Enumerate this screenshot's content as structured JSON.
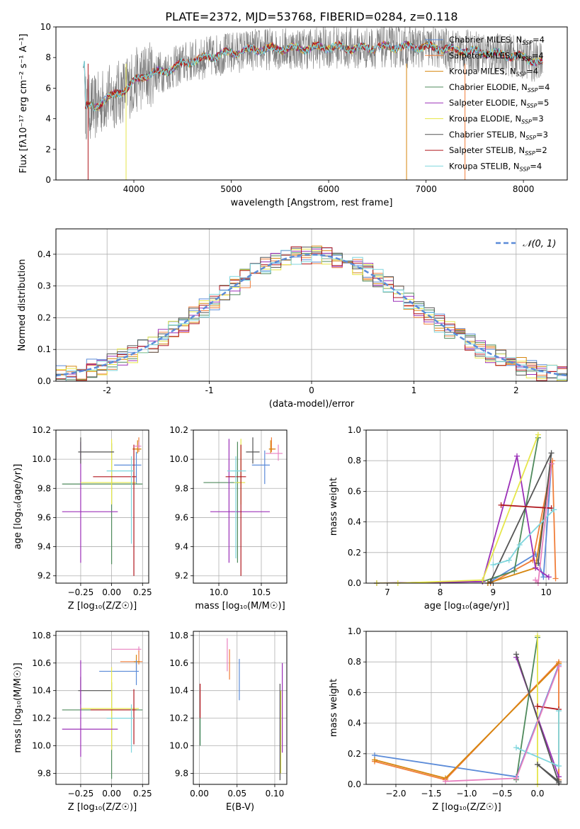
{
  "figure_title": "PLATE=2372, MJD=53768, FIBERID=0284, z=0.118",
  "colors": {
    "chabrier_miles": "#5b8bd8",
    "salpeter_miles": "#f07e3a",
    "kroupa_miles": "#d6860f",
    "chabrier_elodie": "#4f8a5c",
    "salpeter_elodie": "#9b30b8",
    "kroupa_elodie": "#e6e64a",
    "chabrier_stelib": "#555555",
    "salpeter_stelib": "#b0171e",
    "kroupa_stelib": "#7fd6dd",
    "pink": "#e882c0",
    "green": "#8fc43a",
    "gaussian": "#5b8bd8"
  },
  "chart_data": [
    {
      "id": "spectrum",
      "type": "line",
      "title": "PLATE=2372, MJD=53768, FIBERID=0284, z=0.118",
      "xlabel": "wavelength [Angstrom, rest frame]",
      "ylabel": "Flux [fλ10⁻¹⁷ erg cm⁻² s⁻¹ A⁻¹]",
      "xlim": [
        3200,
        8450
      ],
      "ylim": [
        0,
        10
      ],
      "xticks": [
        4000,
        5000,
        6000,
        7000,
        8000
      ],
      "yticks": [
        0,
        2,
        4,
        6,
        8,
        10
      ],
      "grid": false,
      "legend_position": "top-right",
      "series": [
        {
          "name": "Chabrier MILES, N_SSP=4"
        },
        {
          "name": "Salpeter MILES, N_SSP=4"
        },
        {
          "name": "Kroupa MILES, N_SSP=4"
        },
        {
          "name": "Chabrier ELODIE, N_SSP=4"
        },
        {
          "name": "Salpeter ELODIE, N_SSP=5"
        },
        {
          "name": "Kroupa ELODIE, N_SSP=3"
        },
        {
          "name": "Chabrier STELIB, N_SSP=3"
        },
        {
          "name": "Salpeter STELIB, N_SSP=2"
        },
        {
          "name": "Kroupa STELIB, N_SSP=4"
        }
      ],
      "continuum": {
        "x": [
          3500,
          3600,
          3700,
          3800,
          3900,
          4000,
          4100,
          4200,
          4300,
          4400,
          4500,
          4600,
          4700,
          4800,
          5000,
          5200,
          5500,
          5800,
          6000,
          6300,
          6600,
          7000,
          7300,
          7500,
          7800,
          8000,
          8200
        ],
        "y": [
          4.8,
          4.7,
          5.3,
          5.5,
          5.9,
          6.4,
          6.8,
          7.0,
          7.1,
          7.3,
          7.6,
          7.8,
          7.9,
          8.1,
          8.3,
          8.5,
          8.6,
          8.6,
          8.7,
          8.6,
          8.7,
          8.7,
          8.5,
          8.4,
          8.2,
          8.0,
          7.6
        ]
      }
    },
    {
      "id": "residuals",
      "type": "histogram",
      "xlabel": "(data-model)/error",
      "ylabel": "Normed distribution",
      "xlim": [
        -2.5,
        2.5
      ],
      "ylim": [
        0,
        0.48
      ],
      "xticks": [
        -2,
        -1,
        0,
        1,
        2
      ],
      "yticks": [
        0.0,
        0.1,
        0.2,
        0.3,
        0.4
      ],
      "grid": true,
      "legend_position": "top-right",
      "legend": [
        "𝒩(0, 1)"
      ],
      "bin_width": 0.1
    },
    {
      "id": "age_vs_Z",
      "type": "errorbar",
      "xlabel": "Z [log₁₀(Z/Z☉)]",
      "ylabel": "age  [log₁₀(age/yr)]",
      "xlim": [
        -0.45,
        0.3
      ],
      "ylim": [
        9.15,
        10.2
      ],
      "xticks": [
        -0.25,
        0.0,
        0.25
      ],
      "xticklabels": [
        "−0.25",
        "0.00",
        "0.25"
      ],
      "yticks": [
        9.2,
        9.4,
        9.6,
        9.8,
        10.0,
        10.2
      ],
      "grid": true,
      "points": [
        {
          "c": "salpeter_miles",
          "x": 0.22,
          "xe": [
            0.05,
            0.02
          ],
          "y": 10.07,
          "ye": [
            0.02,
            0.08
          ]
        },
        {
          "c": "kroupa_miles",
          "x": 0.21,
          "xe": [
            0.04,
            0.03
          ],
          "y": 10.07,
          "ye": [
            0.03,
            0.06
          ]
        },
        {
          "c": "chabrier_miles",
          "x": 0.2,
          "xe": [
            0.18,
            0.04
          ],
          "y": 9.96,
          "ye": [
            0.13,
            0.09
          ]
        },
        {
          "c": "chabrier_elodie",
          "x": 0.0,
          "xe": [
            0.4,
            0.25
          ],
          "y": 9.83,
          "ye": [
            0.55,
            0.28
          ]
        },
        {
          "c": "salpeter_elodie",
          "x": -0.25,
          "xe": [
            0.15,
            0.3
          ],
          "y": 9.64,
          "ye": [
            0.35,
            0.48
          ]
        },
        {
          "c": "kroupa_elodie",
          "x": 0.0,
          "xe": [
            0.25,
            0.2
          ],
          "y": 9.84,
          "ye": [
            0.15,
            0.3
          ]
        },
        {
          "c": "chabrier_stelib",
          "x": -0.25,
          "xe": [
            0.02,
            0.27
          ],
          "y": 10.05,
          "ye": [
            0.08,
            0.1
          ]
        },
        {
          "c": "salpeter_stelib",
          "x": 0.18,
          "xe": [
            0.33,
            0.02
          ],
          "y": 9.88,
          "ye": [
            0.68,
            0.22
          ]
        },
        {
          "c": "kroupa_stelib",
          "x": 0.16,
          "xe": [
            0.2,
            0.02
          ],
          "y": 9.92,
          "ye": [
            0.5,
            0.1
          ]
        },
        {
          "c": "pink",
          "x": 0.22,
          "xe": [
            0.04,
            0.02
          ],
          "y": 10.09,
          "ye": [
            0.02,
            0.03
          ]
        }
      ]
    },
    {
      "id": "age_vs_mass",
      "type": "errorbar",
      "xlabel": "mass [log₁₀(M/M☉)]",
      "xlim": [
        9.7,
        10.8
      ],
      "ylim": [
        9.15,
        10.2
      ],
      "xticks": [
        10.0,
        10.5
      ],
      "xticklabels": [
        "10.0",
        "10.5"
      ],
      "yticks": [
        9.2,
        9.4,
        9.6,
        9.8,
        10.0,
        10.2
      ],
      "grid": true,
      "points": [
        {
          "c": "salpeter_miles",
          "x": 10.62,
          "xe": [
            0.03,
            0.05
          ],
          "y": 10.07,
          "ye": [
            0.02,
            0.08
          ]
        },
        {
          "c": "kroupa_miles",
          "x": 10.61,
          "xe": [
            0.02,
            0.05
          ],
          "y": 10.07,
          "ye": [
            0.03,
            0.06
          ]
        },
        {
          "c": "chabrier_miles",
          "x": 10.54,
          "xe": [
            0.15,
            0.06
          ],
          "y": 9.96,
          "ye": [
            0.13,
            0.1
          ]
        },
        {
          "c": "chabrier_elodie",
          "x": 10.22,
          "xe": [
            0.4,
            0.05
          ],
          "y": 9.84,
          "ye": [
            0.55,
            0.28
          ]
        },
        {
          "c": "salpeter_elodie",
          "x": 10.12,
          "xe": [
            0.22,
            0.48
          ],
          "y": 9.64,
          "ye": [
            0.35,
            0.5
          ]
        },
        {
          "c": "kroupa_elodie",
          "x": 10.26,
          "xe": [
            0.08,
            0.05
          ],
          "y": 9.84,
          "ye": [
            0.15,
            0.3
          ]
        },
        {
          "c": "chabrier_stelib",
          "x": 10.4,
          "xe": [
            0.08,
            0.08
          ],
          "y": 10.05,
          "ye": [
            0.08,
            0.1
          ]
        },
        {
          "c": "salpeter_stelib",
          "x": 10.26,
          "xe": [
            0.18,
            0.06
          ],
          "y": 9.88,
          "ye": [
            0.68,
            0.22
          ]
        },
        {
          "c": "kroupa_stelib",
          "x": 10.2,
          "xe": [
            0.1,
            0.12
          ],
          "y": 9.92,
          "ye": [
            0.6,
            0.1
          ]
        },
        {
          "c": "pink",
          "x": 10.7,
          "xe": [
            0.15,
            0.05
          ],
          "y": 10.04,
          "ye": [
            0.05,
            0.06
          ]
        }
      ]
    },
    {
      "id": "weight_vs_age",
      "type": "line",
      "xlabel": "age  [log₁₀(age/yr)]",
      "ylabel": "mass weight",
      "xlim": [
        6.6,
        10.4
      ],
      "ylim": [
        0,
        1
      ],
      "xticks": [
        7,
        8,
        9,
        10
      ],
      "yticks": [
        0.0,
        0.2,
        0.4,
        0.6,
        0.8,
        1.0
      ],
      "grid": true,
      "series": [
        {
          "c": "chabrier_miles",
          "x": [
            8.9,
            9.8,
            9.95,
            10.1
          ],
          "y": [
            0.0,
            0.19,
            0.04,
            0.78
          ]
        },
        {
          "c": "salpeter_miles",
          "x": [
            8.95,
            9.75,
            10.12,
            10.18
          ],
          "y": [
            0.0,
            0.15,
            0.8,
            0.03
          ]
        },
        {
          "c": "kroupa_miles",
          "x": [
            8.9,
            9.8,
            10.1
          ],
          "y": [
            0.0,
            0.1,
            0.78
          ]
        },
        {
          "c": "chabrier_elodie",
          "x": [
            6.8,
            8.8,
            9.4,
            9.85
          ],
          "y": [
            0.0,
            0.01,
            0.08,
            0.95
          ]
        },
        {
          "c": "salpeter_elodie",
          "x": [
            6.8,
            8.8,
            9.45,
            9.8,
            10.05
          ],
          "y": [
            0.0,
            0.01,
            0.83,
            0.1,
            0.04
          ]
        },
        {
          "c": "kroupa_elodie",
          "x": [
            6.8,
            7.2,
            8.8,
            9.85
          ],
          "y": [
            0.0,
            0.0,
            0.02,
            0.97
          ]
        },
        {
          "c": "chabrier_stelib",
          "x": [
            8.95,
            10.1,
            9.85
          ],
          "y": [
            0.01,
            0.85,
            0.13
          ]
        },
        {
          "c": "salpeter_stelib",
          "x": [
            9.15,
            10.1
          ],
          "y": [
            0.51,
            0.49
          ]
        },
        {
          "c": "kroupa_stelib",
          "x": [
            9.0,
            9.3,
            9.5,
            10.15
          ],
          "y": [
            0.12,
            0.15,
            0.25,
            0.48
          ]
        },
        {
          "c": "pink",
          "x": [
            9.8,
            9.85,
            10.1
          ],
          "y": [
            0.02,
            0.0,
            0.78
          ]
        }
      ]
    },
    {
      "id": "mass_vs_Z",
      "type": "errorbar",
      "xlabel": "Z [log₁₀(Z/Z☉)]",
      "ylabel": "mass [log₁₀(M/M☉)]",
      "xlim": [
        -0.45,
        0.3
      ],
      "ylim": [
        9.72,
        10.83
      ],
      "xticks": [
        -0.25,
        0.0,
        0.25
      ],
      "xticklabels": [
        "−0.25",
        "0.00",
        "0.25"
      ],
      "yticks": [
        9.8,
        10.0,
        10.2,
        10.4,
        10.6,
        10.8
      ],
      "grid": true,
      "points": [
        {
          "c": "pink",
          "x": 0.22,
          "xe": [
            0.22,
            0.02
          ],
          "y": 10.7,
          "ye": [
            0.02,
            0.02
          ]
        },
        {
          "c": "salpeter_miles",
          "x": 0.22,
          "xe": [
            0.15,
            0.03
          ],
          "y": 10.61,
          "ye": [
            0.02,
            0.08
          ]
        },
        {
          "c": "kroupa_miles",
          "x": 0.2,
          "xe": [
            0.02,
            0.03
          ],
          "y": 10.61,
          "ye": [
            0.06,
            0.05
          ]
        },
        {
          "c": "chabrier_miles",
          "x": 0.2,
          "xe": [
            0.3,
            0.02
          ],
          "y": 10.54,
          "ye": [
            0.1,
            0.08
          ]
        },
        {
          "c": "chabrier_stelib",
          "x": -0.25,
          "xe": [
            0.02,
            0.25
          ],
          "y": 10.4,
          "ye": [
            0.1,
            0.1
          ]
        },
        {
          "c": "chabrier_elodie",
          "x": 0.0,
          "xe": [
            0.4,
            0.25
          ],
          "y": 10.26,
          "ye": [
            0.5,
            0.2
          ]
        },
        {
          "c": "kroupa_elodie",
          "x": 0.0,
          "xe": [
            0.25,
            0.22
          ],
          "y": 10.27,
          "ye": [
            0.3,
            0.3
          ]
        },
        {
          "c": "salpeter_stelib",
          "x": 0.18,
          "xe": [
            0.35,
            0.02
          ],
          "y": 10.26,
          "ye": [
            0.25,
            0.15
          ]
        },
        {
          "c": "kroupa_stelib",
          "x": 0.16,
          "xe": [
            0.2,
            0.02
          ],
          "y": 10.2,
          "ye": [
            0.25,
            0.1
          ]
        },
        {
          "c": "salpeter_elodie",
          "x": -0.25,
          "xe": [
            0.15,
            0.3
          ],
          "y": 10.12,
          "ye": [
            0.2,
            0.5
          ]
        }
      ]
    },
    {
      "id": "mass_vs_ebv",
      "type": "errorbar",
      "xlabel": "E(B-V)",
      "xlim": [
        -0.008,
        0.116
      ],
      "ylim": [
        9.72,
        10.83
      ],
      "xticks": [
        0.0,
        0.05,
        0.1
      ],
      "xticklabels": [
        "0.00",
        "0.05",
        "0.10"
      ],
      "yticks": [
        9.8,
        10.0,
        10.2,
        10.4,
        10.6,
        10.8
      ],
      "grid": true,
      "points": [
        {
          "c": "pink",
          "x": 0.037,
          "y": 10.66,
          "ye": [
            0.12,
            0.12
          ]
        },
        {
          "c": "salpeter_miles",
          "x": 0.04,
          "y": 10.58,
          "ye": [
            0.1,
            0.12
          ]
        },
        {
          "c": "chabrier_miles",
          "x": 0.053,
          "y": 10.48,
          "ye": [
            0.15,
            0.15
          ]
        },
        {
          "c": "salpeter_elodie",
          "x": 0.11,
          "y": 10.3,
          "ye": [
            0.35,
            0.3
          ]
        },
        {
          "c": "kroupa_elodie",
          "x": 0.108,
          "y": 10.2,
          "ye": [
            0.4,
            0.2
          ]
        },
        {
          "c": "chabrier_stelib",
          "x": 0.107,
          "y": 10.05,
          "ye": [
            0.3,
            0.4
          ]
        },
        {
          "c": "salpeter_stelib",
          "x": 0.001,
          "y": 10.32,
          "ye": [
            0.12,
            0.13
          ]
        },
        {
          "c": "kroupa_stelib",
          "x": 0.001,
          "y": 10.1,
          "ye": [
            0.1,
            0.1
          ]
        },
        {
          "c": "chabrier_elodie",
          "x": 0.001,
          "y": 10.05,
          "ye": [
            0.05,
            0.15
          ]
        }
      ]
    },
    {
      "id": "weight_vs_Z",
      "type": "line",
      "xlabel": "Z [log₁₀(Z/Z☉)]",
      "ylabel": "mass weight",
      "xlim": [
        -2.42,
        0.42
      ],
      "ylim": [
        0,
        1
      ],
      "xticks": [
        -2.0,
        -1.5,
        -1.0,
        -0.5,
        0.0
      ],
      "xticklabels": [
        "−2.0",
        "−1.5",
        "−1.0",
        "−0.5",
        "0.0"
      ],
      "yticks": [
        0.0,
        0.2,
        0.4,
        0.6,
        0.8,
        1.0
      ],
      "grid": true,
      "series": [
        {
          "c": "chabrier_miles",
          "x": [
            -2.3,
            -0.3,
            0.3
          ],
          "y": [
            0.19,
            0.05,
            0.78
          ]
        },
        {
          "c": "salpeter_miles",
          "x": [
            -2.3,
            -1.3,
            0.3,
            0.3
          ],
          "y": [
            0.15,
            0.03,
            0.8,
            0.03
          ]
        },
        {
          "c": "kroupa_miles",
          "x": [
            -2.3,
            -1.3,
            0.3
          ],
          "y": [
            0.16,
            0.04,
            0.79
          ]
        },
        {
          "c": "chabrier_elodie",
          "x": [
            -0.3,
            0.0
          ],
          "y": [
            0.03,
            0.96
          ]
        },
        {
          "c": "salpeter_elodie",
          "x": [
            -0.3,
            0.3
          ],
          "y": [
            0.83,
            0.05
          ]
        },
        {
          "c": "kroupa_elodie",
          "x": [
            0.0,
            0.0
          ],
          "y": [
            0.0,
            0.97
          ]
        },
        {
          "c": "chabrier_stelib",
          "x": [
            -0.3,
            0.3,
            0.0,
            0.3
          ],
          "y": [
            0.85,
            0.01,
            0.13,
            0.02
          ]
        },
        {
          "c": "salpeter_stelib",
          "x": [
            0.0,
            0.3
          ],
          "y": [
            0.51,
            0.49
          ]
        },
        {
          "c": "kroupa_stelib",
          "x": [
            -0.3,
            0.3,
            0.3
          ],
          "y": [
            0.24,
            0.12,
            0.48
          ]
        },
        {
          "c": "pink",
          "x": [
            -1.3,
            -0.3,
            0.3
          ],
          "y": [
            0.02,
            0.04,
            0.77
          ]
        }
      ]
    }
  ]
}
